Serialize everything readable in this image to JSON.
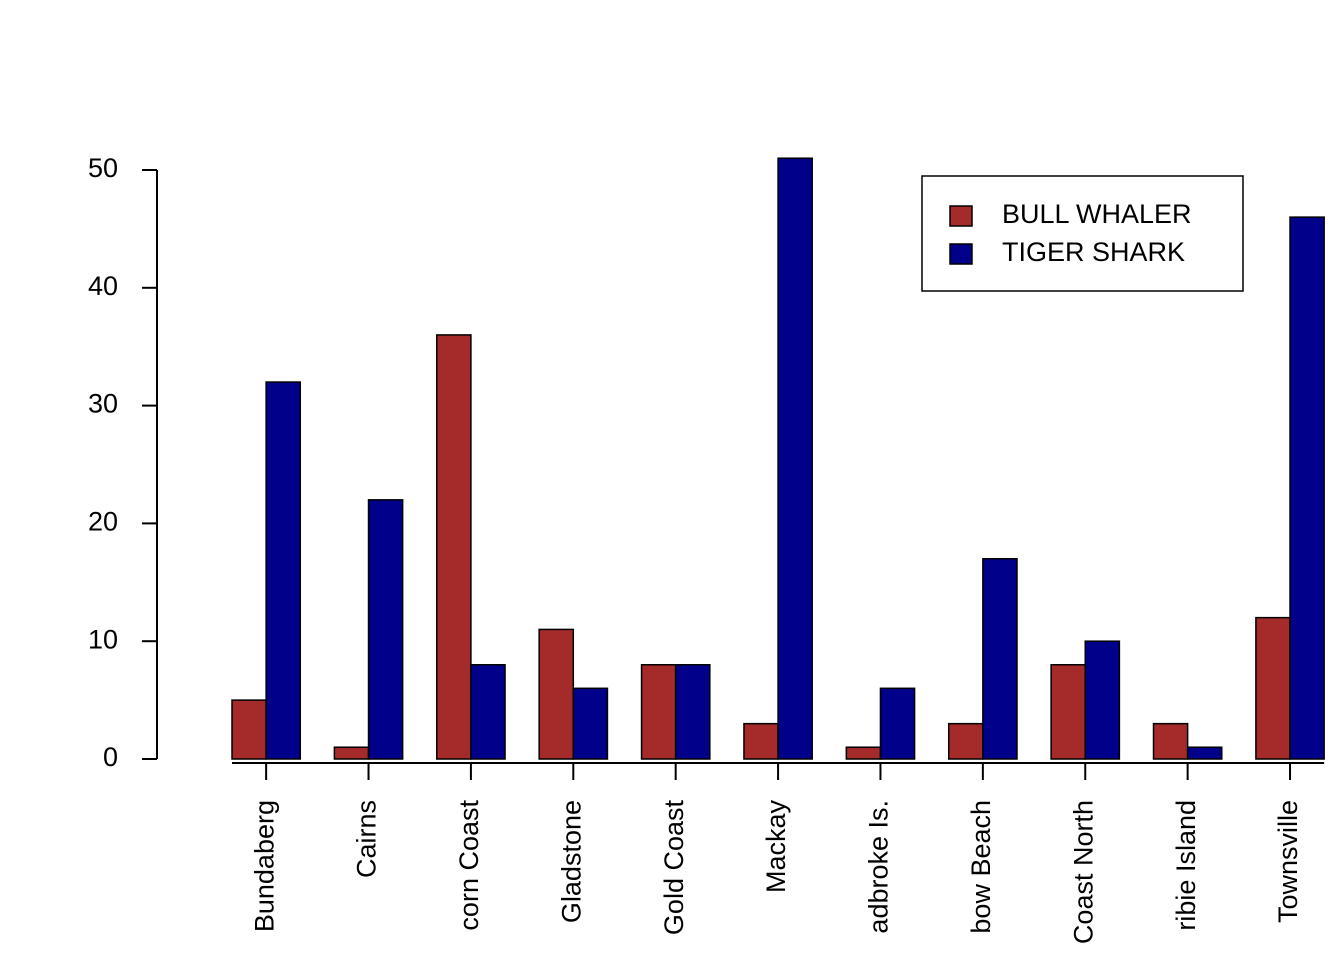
{
  "chart_data": {
    "type": "bar",
    "categories": [
      "Bundaberg",
      "Cairns",
      "corn Coast",
      "Gladstone",
      "Gold Coast",
      "Mackay",
      "adbroke Is.",
      "bow Beach",
      "Coast North",
      "ribie Island",
      "Townsville"
    ],
    "series": [
      {
        "name": "BULL WHALER",
        "color": "#a52a2a",
        "values": [
          5,
          1,
          36,
          11,
          8,
          3,
          1,
          3,
          8,
          3,
          12
        ]
      },
      {
        "name": "TIGER SHARK",
        "color": "#00008b",
        "values": [
          32,
          22,
          8,
          6,
          8,
          51,
          6,
          17,
          10,
          1,
          46
        ]
      }
    ],
    "ylim": [
      0,
      50
    ],
    "yticks": [
      0,
      10,
      20,
      30,
      40,
      50
    ],
    "legend": "top-right"
  }
}
